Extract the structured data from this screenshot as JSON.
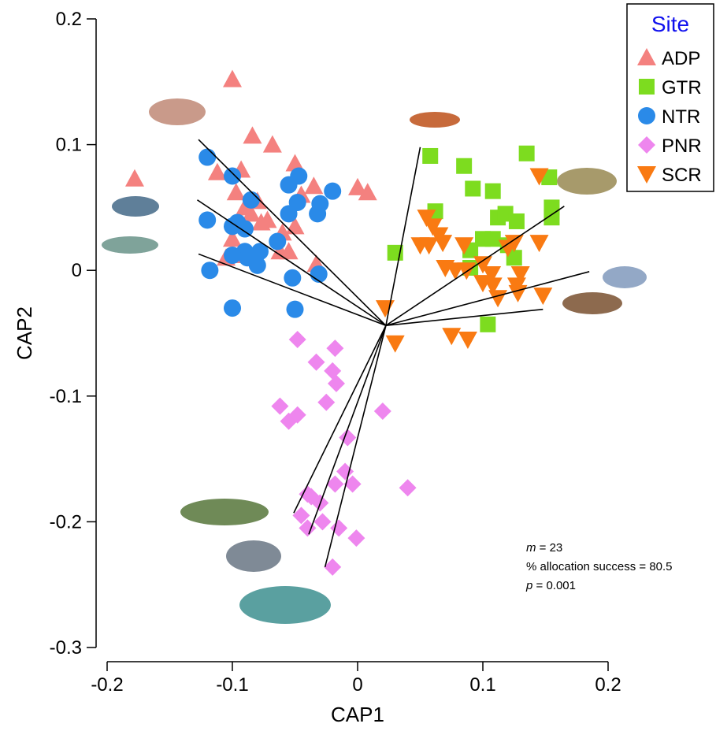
{
  "chart_data": {
    "type": "scatter",
    "x_label": "CAP1",
    "y_label": "CAP2",
    "xlim": [
      -0.2,
      0.2
    ],
    "xticks": [
      -0.2,
      -0.1,
      0,
      0.1,
      0.2
    ],
    "ylim": [
      -0.3,
      0.2
    ],
    "yticks": [
      -0.3,
      -0.2,
      -0.1,
      0,
      0.1,
      0.2
    ],
    "legend_title": "Site",
    "legend_position": "upper right",
    "series": [
      {
        "name": "ADP",
        "color": "#f4817f",
        "marker": "triangle-up",
        "x": [
          -0.1,
          -0.178,
          -0.084,
          -0.068,
          -0.05,
          -0.112,
          -0.093,
          -0.097,
          -0.08,
          -0.072,
          -0.077,
          -0.085,
          -0.06,
          -0.05,
          -0.055,
          -0.1,
          -0.095,
          -0.035,
          -0.045,
          -0.033,
          0.0,
          0.008,
          -0.09,
          -0.105,
          -0.062
        ],
        "values": [
          0.152,
          0.073,
          0.107,
          0.1,
          0.085,
          0.078,
          0.08,
          0.062,
          0.055,
          0.04,
          0.038,
          0.045,
          0.03,
          0.035,
          0.015,
          0.025,
          0.012,
          0.067,
          0.06,
          0.005,
          0.066,
          0.062,
          0.05,
          0.01,
          0.015
        ]
      },
      {
        "name": "GTR",
        "color": "#7ddc1f",
        "marker": "square",
        "x": [
          0.058,
          0.085,
          0.108,
          0.092,
          0.135,
          0.153,
          0.062,
          0.112,
          0.118,
          0.127,
          0.155,
          0.155,
          0.1,
          0.108,
          0.03,
          0.09,
          0.12,
          0.125,
          0.09,
          0.104
        ],
        "values": [
          0.091,
          0.083,
          0.063,
          0.065,
          0.093,
          0.074,
          0.047,
          0.042,
          0.045,
          0.039,
          0.05,
          0.042,
          0.025,
          0.025,
          0.014,
          0.016,
          0.02,
          0.01,
          0.002,
          -0.043
        ]
      },
      {
        "name": "NTR",
        "color": "#2a8ae8",
        "marker": "circle",
        "x": [
          -0.12,
          -0.1,
          -0.12,
          -0.1,
          -0.096,
          -0.085,
          -0.09,
          -0.09,
          -0.1,
          -0.078,
          -0.08,
          -0.064,
          -0.055,
          -0.047,
          -0.048,
          -0.055,
          -0.03,
          -0.032,
          -0.02,
          -0.118,
          -0.052,
          -0.031,
          -0.1,
          -0.05,
          -0.088
        ],
        "values": [
          0.09,
          0.075,
          0.04,
          0.035,
          0.038,
          0.056,
          0.033,
          0.015,
          0.012,
          0.015,
          0.004,
          0.023,
          0.068,
          0.075,
          0.054,
          0.045,
          0.053,
          0.045,
          0.063,
          0.0,
          -0.006,
          -0.003,
          -0.03,
          -0.031,
          0.01
        ]
      },
      {
        "name": "PNR",
        "color": "#ee86ee",
        "marker": "diamond",
        "x": [
          -0.048,
          -0.033,
          -0.018,
          -0.02,
          -0.017,
          -0.025,
          -0.062,
          -0.055,
          -0.048,
          0.02,
          -0.008,
          -0.04,
          -0.03,
          -0.028,
          -0.04,
          -0.037,
          -0.018,
          -0.01,
          -0.004,
          -0.045,
          -0.015,
          -0.001,
          -0.02,
          0.04
        ],
        "values": [
          -0.055,
          -0.073,
          -0.062,
          -0.08,
          -0.09,
          -0.105,
          -0.108,
          -0.12,
          -0.115,
          -0.112,
          -0.133,
          -0.178,
          -0.185,
          -0.2,
          -0.205,
          -0.18,
          -0.17,
          -0.16,
          -0.17,
          -0.195,
          -0.205,
          -0.213,
          -0.236,
          -0.173
        ]
      },
      {
        "name": "SCR",
        "color": "#f97a12",
        "marker": "triangle-down",
        "x": [
          0.022,
          0.03,
          0.055,
          0.06,
          0.065,
          0.057,
          0.05,
          0.068,
          0.07,
          0.078,
          0.085,
          0.087,
          0.1,
          0.1,
          0.107,
          0.108,
          0.12,
          0.125,
          0.13,
          0.127,
          0.145,
          0.145,
          0.112,
          0.128,
          0.148,
          0.075,
          0.088
        ],
        "values": [
          -0.03,
          -0.058,
          0.042,
          0.035,
          0.028,
          0.02,
          0.02,
          0.022,
          0.002,
          0.0,
          0.02,
          0.0,
          0.005,
          -0.01,
          -0.003,
          -0.012,
          0.018,
          0.022,
          -0.003,
          -0.012,
          0.022,
          0.075,
          -0.022,
          -0.018,
          -0.02,
          -0.052,
          -0.055
        ]
      }
    ],
    "vector_origin": {
      "x": 0.0226,
      "y": -0.0439
    },
    "vectors": [
      {
        "x": -0.127,
        "y": 0.104
      },
      {
        "x": -0.128,
        "y": 0.056
      },
      {
        "x": -0.127,
        "y": 0.013
      },
      {
        "x": 0.05,
        "y": 0.098
      },
      {
        "x": 0.165,
        "y": 0.051
      },
      {
        "x": 0.185,
        "y": -0.001
      },
      {
        "x": 0.148,
        "y": -0.031
      },
      {
        "x": -0.051,
        "y": -0.193
      },
      {
        "x": -0.039,
        "y": -0.21
      },
      {
        "x": -0.026,
        "y": -0.236
      }
    ],
    "annotations": [
      {
        "var": "m",
        "text": " = 23"
      },
      {
        "text": "% allocation success = 80.5"
      },
      {
        "var": "p",
        "text": " = 0.001"
      }
    ]
  }
}
